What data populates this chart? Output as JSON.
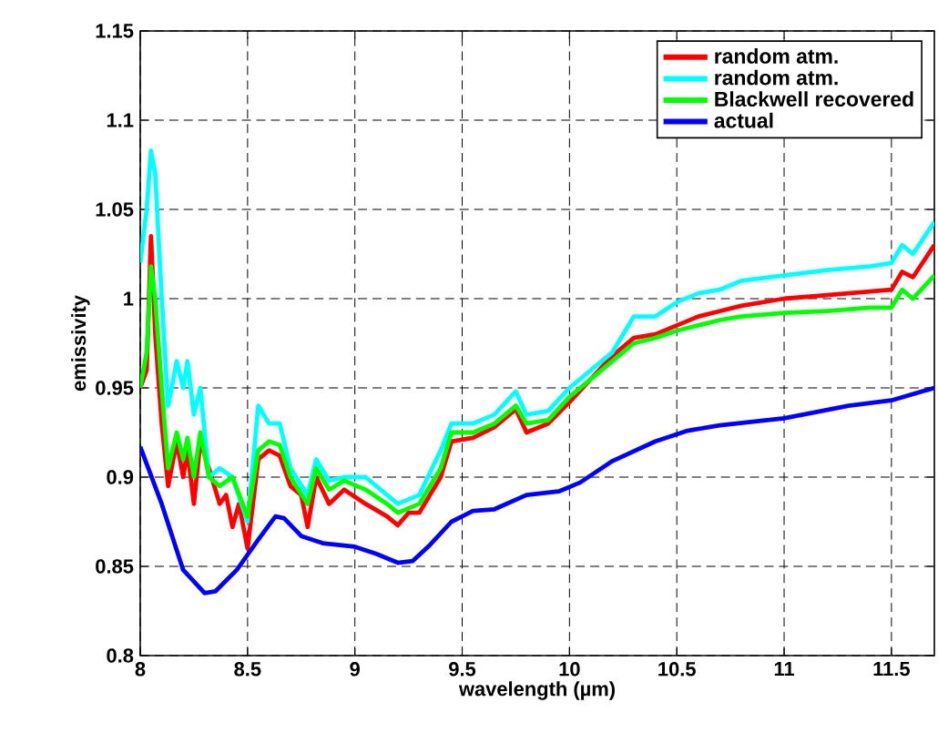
{
  "chart_data": {
    "type": "line",
    "xlabel": "wavelength (µm)",
    "ylabel": "emissivity",
    "xlim": [
      8,
      11.7
    ],
    "ylim": [
      0.8,
      1.15
    ],
    "xticks": [
      8,
      8.5,
      9,
      9.5,
      10,
      10.5,
      11,
      11.5
    ],
    "yticks": [
      0.8,
      0.85,
      0.9,
      0.95,
      1,
      1.05,
      1.1,
      1.15
    ],
    "grid": true,
    "legend": "top right",
    "line_style": "solid",
    "marker": "none",
    "series": [
      {
        "name": "random atm.",
        "color": "#ff0000",
        "x": [
          8,
          8.03,
          8.05,
          8.07,
          8.1,
          8.13,
          8.17,
          8.2,
          8.22,
          8.25,
          8.28,
          8.32,
          8.37,
          8.4,
          8.43,
          8.46,
          8.5,
          8.55,
          8.6,
          8.65,
          8.7,
          8.75,
          8.78,
          8.82,
          8.88,
          8.95,
          9.05,
          9.15,
          9.2,
          9.25,
          9.3,
          9.35,
          9.4,
          9.45,
          9.55,
          9.65,
          9.75,
          9.8,
          9.9,
          10,
          10.1,
          10.2,
          10.3,
          10.4,
          10.5,
          10.6,
          10.7,
          10.8,
          11,
          11.2,
          11.4,
          11.5,
          11.55,
          11.6,
          11.7
        ],
        "values": [
          0.95,
          0.96,
          1.035,
          0.98,
          0.93,
          0.895,
          0.92,
          0.9,
          0.915,
          0.885,
          0.92,
          0.905,
          0.885,
          0.89,
          0.872,
          0.885,
          0.86,
          0.91,
          0.915,
          0.912,
          0.895,
          0.89,
          0.872,
          0.9,
          0.885,
          0.893,
          0.885,
          0.878,
          0.873,
          0.88,
          0.88,
          0.89,
          0.9,
          0.92,
          0.922,
          0.928,
          0.938,
          0.925,
          0.93,
          0.942,
          0.955,
          0.968,
          0.978,
          0.98,
          0.985,
          0.99,
          0.993,
          0.996,
          1.0,
          1.002,
          1.004,
          1.005,
          1.015,
          1.012,
          1.03
        ]
      },
      {
        "name": "random atm.",
        "color": "#00ffff",
        "x": [
          8,
          8.03,
          8.05,
          8.07,
          8.1,
          8.13,
          8.17,
          8.2,
          8.22,
          8.25,
          8.28,
          8.32,
          8.37,
          8.43,
          8.5,
          8.55,
          8.6,
          8.65,
          8.7,
          8.78,
          8.82,
          8.88,
          8.95,
          9.05,
          9.15,
          9.2,
          9.3,
          9.4,
          9.45,
          9.55,
          9.65,
          9.75,
          9.8,
          9.9,
          10,
          10.1,
          10.2,
          10.3,
          10.4,
          10.5,
          10.6,
          10.7,
          10.8,
          11,
          11.2,
          11.4,
          11.5,
          11.55,
          11.6,
          11.7
        ],
        "values": [
          1.02,
          1.05,
          1.083,
          1.07,
          1.0,
          0.94,
          0.965,
          0.95,
          0.965,
          0.935,
          0.95,
          0.9,
          0.905,
          0.9,
          0.875,
          0.94,
          0.93,
          0.93,
          0.905,
          0.89,
          0.91,
          0.898,
          0.9,
          0.9,
          0.89,
          0.885,
          0.89,
          0.915,
          0.93,
          0.93,
          0.935,
          0.948,
          0.935,
          0.937,
          0.95,
          0.96,
          0.97,
          0.99,
          0.99,
          0.998,
          1.003,
          1.005,
          1.01,
          1.013,
          1.016,
          1.018,
          1.02,
          1.03,
          1.025,
          1.043
        ]
      },
      {
        "name": "Blackwell recovered",
        "color": "#00ff00",
        "x": [
          8,
          8.03,
          8.05,
          8.07,
          8.1,
          8.13,
          8.17,
          8.2,
          8.22,
          8.25,
          8.28,
          8.32,
          8.37,
          8.43,
          8.5,
          8.55,
          8.6,
          8.65,
          8.7,
          8.78,
          8.82,
          8.88,
          8.95,
          9.05,
          9.15,
          9.2,
          9.3,
          9.35,
          9.4,
          9.45,
          9.55,
          9.65,
          9.75,
          9.8,
          9.9,
          10,
          10.1,
          10.2,
          10.3,
          10.4,
          10.5,
          10.6,
          10.7,
          10.8,
          11,
          11.2,
          11.4,
          11.5,
          11.55,
          11.6,
          11.7
        ],
        "values": [
          0.95,
          0.97,
          1.018,
          1.0,
          0.95,
          0.905,
          0.925,
          0.91,
          0.922,
          0.9,
          0.925,
          0.9,
          0.895,
          0.9,
          0.878,
          0.915,
          0.92,
          0.918,
          0.9,
          0.885,
          0.905,
          0.893,
          0.898,
          0.893,
          0.885,
          0.88,
          0.885,
          0.895,
          0.905,
          0.925,
          0.925,
          0.93,
          0.94,
          0.93,
          0.932,
          0.945,
          0.955,
          0.965,
          0.975,
          0.978,
          0.982,
          0.985,
          0.988,
          0.99,
          0.992,
          0.993,
          0.995,
          0.995,
          1.005,
          1.0,
          1.013
        ]
      },
      {
        "name": "actual",
        "color": "#0000ff",
        "x": [
          8,
          8.1,
          8.2,
          8.3,
          8.35,
          8.45,
          8.55,
          8.63,
          8.67,
          8.75,
          8.85,
          9,
          9.1,
          9.2,
          9.27,
          9.35,
          9.45,
          9.55,
          9.65,
          9.8,
          9.95,
          10.05,
          10.2,
          10.4,
          10.55,
          10.7,
          11,
          11.3,
          11.5,
          11.7
        ],
        "values": [
          0.917,
          0.885,
          0.848,
          0.835,
          0.836,
          0.848,
          0.865,
          0.878,
          0.877,
          0.867,
          0.863,
          0.861,
          0.857,
          0.852,
          0.853,
          0.862,
          0.875,
          0.881,
          0.882,
          0.89,
          0.892,
          0.897,
          0.909,
          0.92,
          0.926,
          0.929,
          0.933,
          0.94,
          0.943,
          0.95
        ]
      }
    ]
  }
}
